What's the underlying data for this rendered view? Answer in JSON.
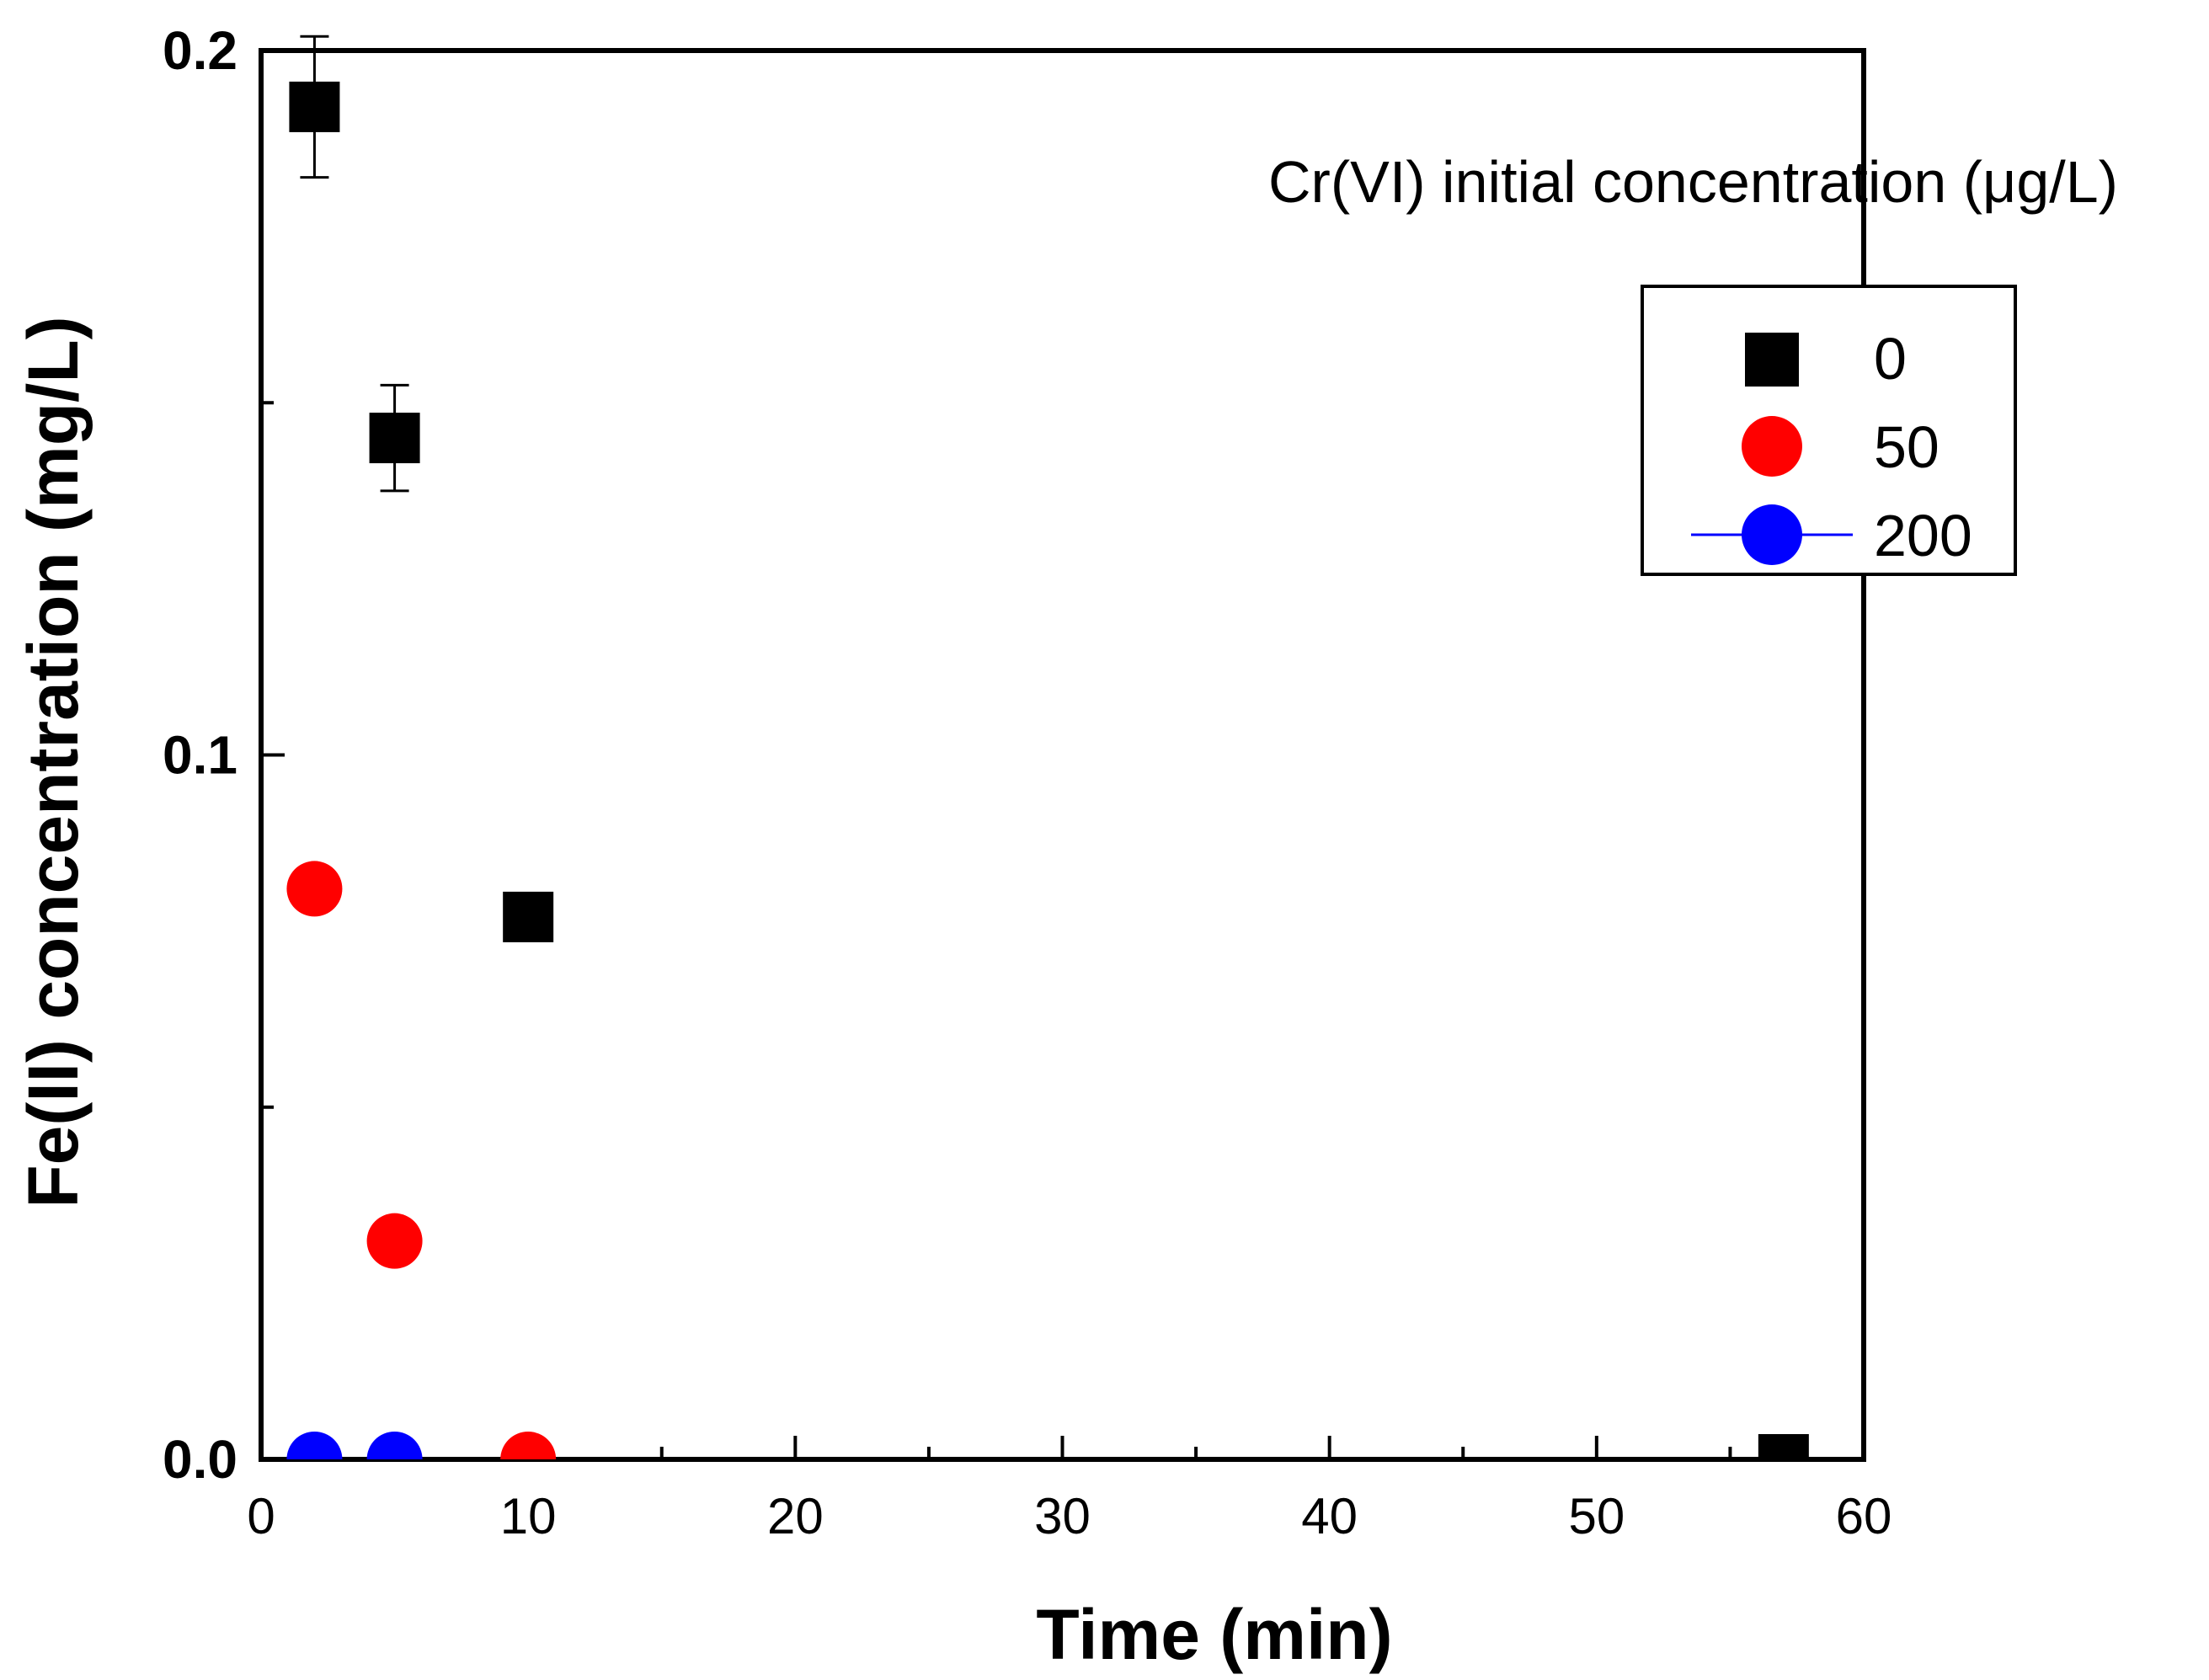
{
  "chart_data": {
    "type": "scatter",
    "title": "",
    "xlabel": "Time (min)",
    "ylabel": "Fe(II) concentration (mg/L)",
    "xlim": [
      0,
      60
    ],
    "ylim": [
      0,
      0.2
    ],
    "x_ticks": [
      0,
      10,
      20,
      30,
      40,
      50,
      60
    ],
    "x_tick_labels": [
      "0",
      "10",
      "20",
      "30",
      "40",
      "50",
      "60"
    ],
    "y_ticks": [
      0.0,
      0.1,
      0.2
    ],
    "y_tick_labels": [
      "0.0",
      "0.1",
      "0.2"
    ],
    "annotation": "Cr(VI) initial concentration (μg/L)",
    "legend_position": "upper-right",
    "series": [
      {
        "name": "0",
        "marker": "square",
        "color": "#000000",
        "points": [
          {
            "x": 2,
            "y": 0.192,
            "err": 0.01
          },
          {
            "x": 5,
            "y": 0.145,
            "err": 0.0075
          },
          {
            "x": 10,
            "y": 0.077,
            "err": 0
          },
          {
            "x": 57,
            "y": 0.0,
            "err": 0
          }
        ]
      },
      {
        "name": "50",
        "marker": "circle",
        "color": "#ff0000",
        "points": [
          {
            "x": 2,
            "y": 0.081,
            "err": 0
          },
          {
            "x": 5,
            "y": 0.031,
            "err": 0
          },
          {
            "x": 10,
            "y": 0.0,
            "err": 0
          }
        ]
      },
      {
        "name": "200",
        "marker": "circle",
        "color": "#0000ff",
        "legend_line": true,
        "points": [
          {
            "x": 2,
            "y": 0.0,
            "err": 0
          },
          {
            "x": 5,
            "y": 0.0,
            "err": 0
          }
        ]
      }
    ]
  }
}
